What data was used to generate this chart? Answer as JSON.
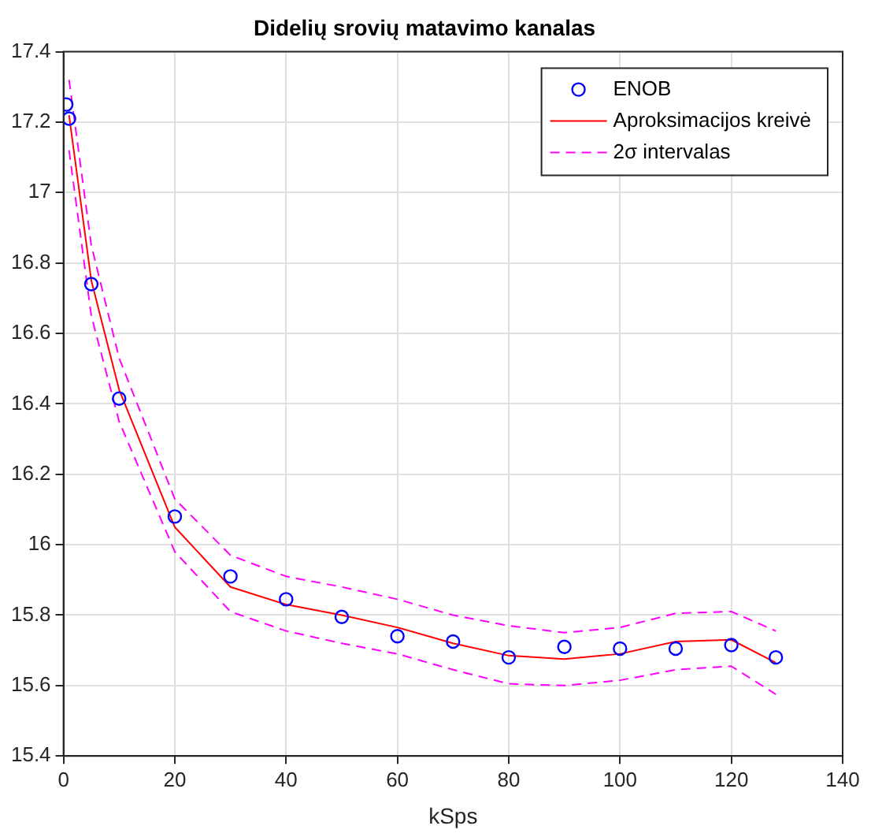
{
  "chart_data": {
    "type": "line",
    "title": "Didelių srovių matavimo kanalas",
    "xlabel": "kSps",
    "xlim": [
      0,
      140
    ],
    "xticks": [
      0,
      20,
      40,
      60,
      80,
      100,
      120,
      140
    ],
    "ylim": [
      15.4,
      17.4
    ],
    "yticks": [
      15.4,
      15.6,
      15.8,
      16,
      16.2,
      16.4,
      16.6,
      16.8,
      17,
      17.2,
      17.4
    ],
    "grid": true,
    "legend": "top right",
    "series": [
      {
        "name": "ENOB",
        "type": "scatter",
        "marker": "circle",
        "color": "#0000ff",
        "x": [
          0.5,
          1,
          5,
          10,
          20,
          30,
          40,
          50,
          60,
          70,
          80,
          90,
          100,
          110,
          120,
          128
        ],
        "values": [
          17.25,
          17.21,
          16.74,
          16.415,
          16.08,
          15.91,
          15.845,
          15.795,
          15.74,
          15.725,
          15.68,
          15.71,
          15.705,
          15.705,
          15.715,
          15.68
        ]
      },
      {
        "name": "Aproksimacijos kreivė",
        "type": "line",
        "marker": "none",
        "line_style": "solid",
        "color": "#ff0000",
        "x": [
          1,
          5,
          10,
          20,
          30,
          40,
          50,
          60,
          70,
          80,
          90,
          100,
          110,
          120,
          128
        ],
        "values": [
          17.22,
          16.75,
          16.44,
          16.05,
          15.88,
          15.83,
          15.8,
          15.765,
          15.72,
          15.685,
          15.675,
          15.69,
          15.725,
          15.73,
          15.665
        ]
      },
      {
        "name": "2σ intervalas",
        "type": "line",
        "marker": "none",
        "line_style": "dashed",
        "color": "#ff00ff",
        "x": [
          1,
          5,
          10,
          20,
          30,
          40,
          50,
          60,
          70,
          80,
          90,
          100,
          110,
          120,
          128
        ],
        "values": [
          17.32,
          16.85,
          16.53,
          16.13,
          15.97,
          15.91,
          15.88,
          15.845,
          15.8,
          15.77,
          15.75,
          15.765,
          15.805,
          15.81,
          15.755
        ]
      },
      {
        "type": "line",
        "marker": "none",
        "line_style": "dashed",
        "color": "#ff00ff",
        "x": [
          1,
          5,
          10,
          20,
          30,
          40,
          50,
          60,
          70,
          80,
          90,
          100,
          110,
          120,
          128
        ],
        "values": [
          17.12,
          16.65,
          16.35,
          15.98,
          15.81,
          15.755,
          15.72,
          15.69,
          15.645,
          15.605,
          15.6,
          15.615,
          15.645,
          15.655,
          15.575
        ]
      }
    ]
  }
}
